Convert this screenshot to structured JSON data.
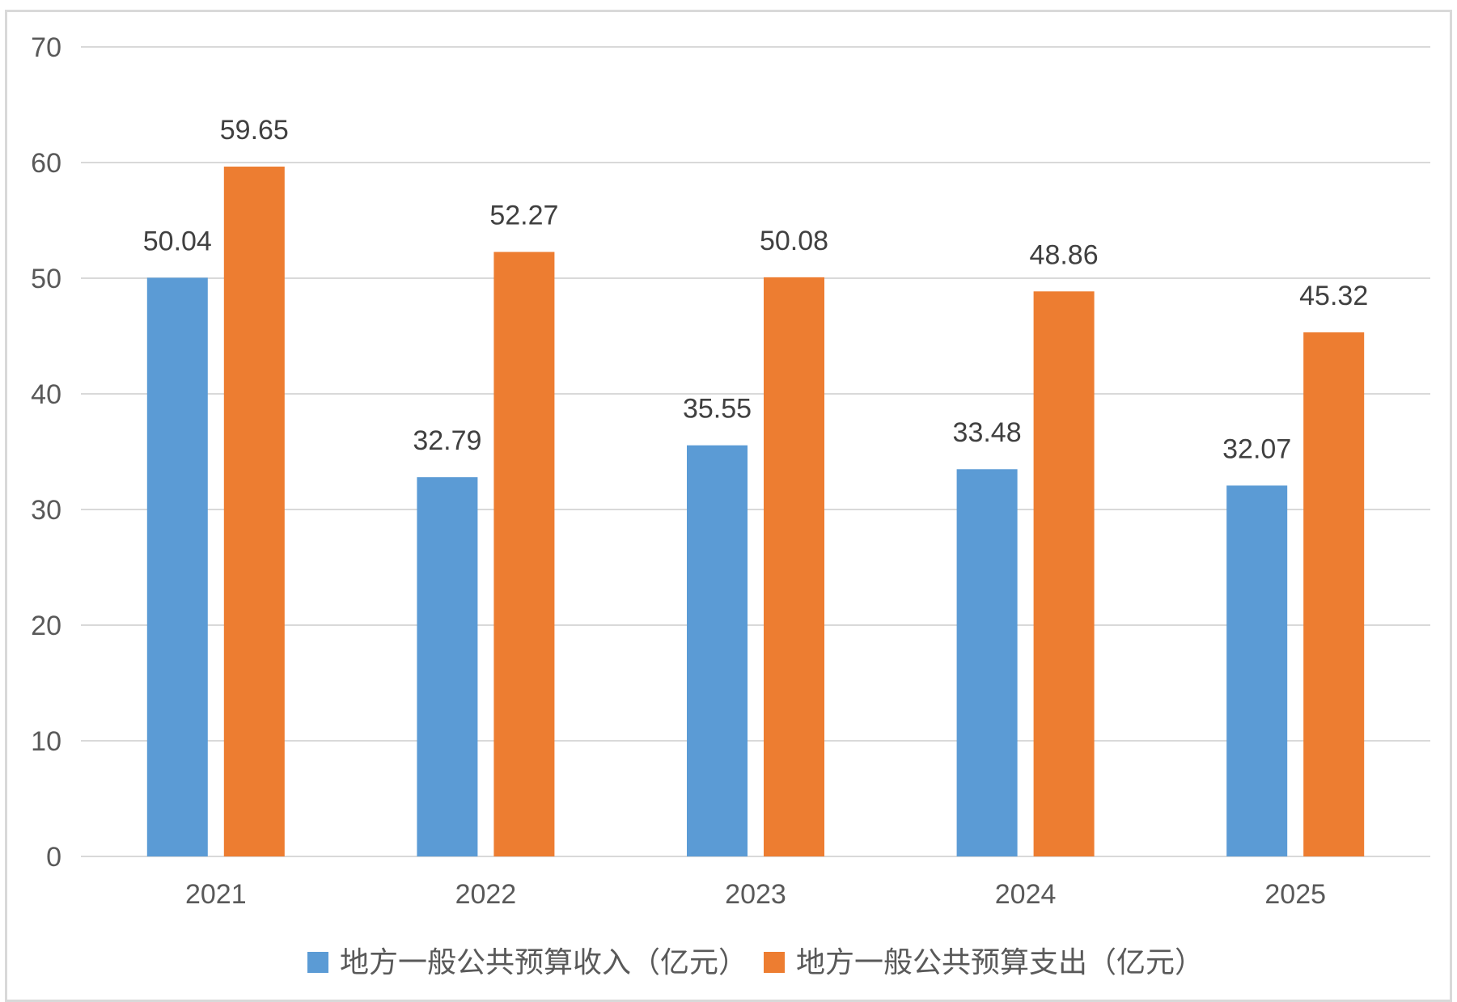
{
  "chart_data": {
    "type": "bar",
    "categories": [
      "2021",
      "2022",
      "2023",
      "2024",
      "2025"
    ],
    "series": [
      {
        "name": "地方一般公共预算收入（亿元）",
        "color": "#5b9bd5",
        "values": [
          50.04,
          32.79,
          35.55,
          33.48,
          32.07
        ]
      },
      {
        "name": "地方一般公共预算支出（亿元）",
        "color": "#ed7d31",
        "values": [
          59.65,
          52.27,
          50.08,
          48.86,
          45.32
        ]
      }
    ],
    "title": "",
    "xlabel": "",
    "ylabel": "",
    "ylim": [
      0,
      70
    ],
    "yticks": [
      0,
      10,
      20,
      30,
      40,
      50,
      60,
      70
    ],
    "grid": true,
    "legend": "bottom"
  }
}
